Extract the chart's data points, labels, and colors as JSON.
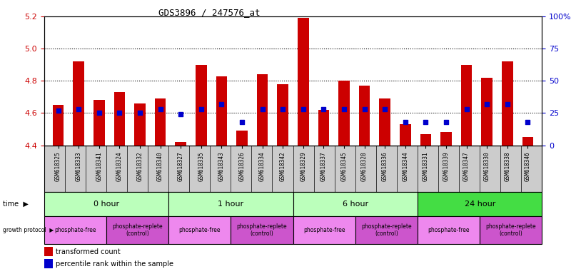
{
  "title": "GDS3896 / 247576_at",
  "samples": [
    "GSM618325",
    "GSM618333",
    "GSM618341",
    "GSM618324",
    "GSM618332",
    "GSM618340",
    "GSM618327",
    "GSM618335",
    "GSM618343",
    "GSM618326",
    "GSM618334",
    "GSM618342",
    "GSM618329",
    "GSM618337",
    "GSM618345",
    "GSM618328",
    "GSM618336",
    "GSM618344",
    "GSM618331",
    "GSM618339",
    "GSM618347",
    "GSM618330",
    "GSM618338",
    "GSM618346"
  ],
  "transformed_count": [
    4.65,
    4.92,
    4.68,
    4.73,
    4.66,
    4.69,
    4.42,
    4.9,
    4.83,
    4.49,
    4.84,
    4.78,
    5.19,
    4.62,
    4.8,
    4.77,
    4.69,
    4.53,
    4.47,
    4.48,
    4.9,
    4.82,
    4.92,
    4.45
  ],
  "percentile_rank_pct": [
    27,
    28,
    25,
    25,
    25,
    28,
    24,
    28,
    32,
    18,
    28,
    28,
    28,
    28,
    28,
    28,
    28,
    18,
    18,
    18,
    28,
    32,
    32,
    18
  ],
  "ylim_left": [
    4.4,
    5.2
  ],
  "yticks_left": [
    4.4,
    4.6,
    4.8,
    5.0,
    5.2
  ],
  "yticks_right": [
    0,
    25,
    50,
    75,
    100
  ],
  "ytick_labels_right": [
    "0",
    "25",
    "50",
    "75",
    "100%"
  ],
  "groups": [
    {
      "label": "0 hour",
      "start": 0,
      "end": 6,
      "color": "#bbffbb"
    },
    {
      "label": "1 hour",
      "start": 6,
      "end": 12,
      "color": "#bbffbb"
    },
    {
      "label": "6 hour",
      "start": 12,
      "end": 18,
      "color": "#bbffbb"
    },
    {
      "label": "24 hour",
      "start": 18,
      "end": 24,
      "color": "#44dd44"
    }
  ],
  "subgroups": [
    {
      "label": "phosphate-free",
      "start": 0,
      "end": 3,
      "color": "#ee88ee"
    },
    {
      "label": "phosphate-replete\n(control)",
      "start": 3,
      "end": 6,
      "color": "#cc55cc"
    },
    {
      "label": "phosphate-free",
      "start": 6,
      "end": 9,
      "color": "#ee88ee"
    },
    {
      "label": "phosphate-replete\n(control)",
      "start": 9,
      "end": 12,
      "color": "#cc55cc"
    },
    {
      "label": "phosphate-free",
      "start": 12,
      "end": 15,
      "color": "#ee88ee"
    },
    {
      "label": "phosphate-replete\n(control)",
      "start": 15,
      "end": 18,
      "color": "#cc55cc"
    },
    {
      "label": "phosphate-free",
      "start": 18,
      "end": 21,
      "color": "#ee88ee"
    },
    {
      "label": "phosphate-replete\n(control)",
      "start": 21,
      "end": 24,
      "color": "#cc55cc"
    }
  ],
  "bar_color": "#cc0000",
  "dot_color": "#0000cc",
  "bar_width": 0.55,
  "dot_size": 18,
  "axis_label_color_left": "#cc0000",
  "axis_label_color_right": "#0000cc",
  "plot_bg": "#ffffff",
  "sample_bg": "#cccccc"
}
